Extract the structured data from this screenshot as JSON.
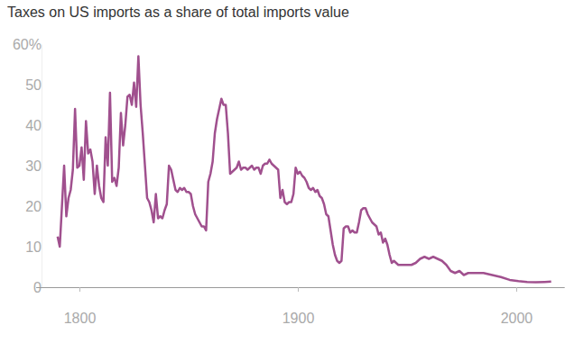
{
  "chart_data": {
    "type": "line",
    "title": "Taxes on US imports as a share of total imports value",
    "x": [
      1790,
      1791,
      1792,
      1793,
      1794,
      1795,
      1796,
      1797,
      1798,
      1799,
      1800,
      1801,
      1802,
      1803,
      1804,
      1805,
      1806,
      1807,
      1808,
      1809,
      1810,
      1811,
      1812,
      1813,
      1814,
      1815,
      1816,
      1817,
      1818,
      1819,
      1820,
      1821,
      1822,
      1823,
      1824,
      1825,
      1826,
      1827,
      1828,
      1829,
      1830,
      1831,
      1832,
      1833,
      1834,
      1835,
      1836,
      1837,
      1838,
      1839,
      1840,
      1841,
      1842,
      1843,
      1844,
      1845,
      1846,
      1847,
      1848,
      1849,
      1850,
      1851,
      1852,
      1853,
      1854,
      1855,
      1856,
      1857,
      1858,
      1859,
      1860,
      1861,
      1862,
      1863,
      1864,
      1865,
      1866,
      1867,
      1868,
      1869,
      1870,
      1871,
      1872,
      1873,
      1874,
      1875,
      1876,
      1877,
      1878,
      1879,
      1880,
      1881,
      1882,
      1883,
      1884,
      1885,
      1886,
      1887,
      1888,
      1889,
      1890,
      1891,
      1892,
      1893,
      1894,
      1895,
      1896,
      1897,
      1898,
      1899,
      1900,
      1901,
      1902,
      1903,
      1904,
      1905,
      1906,
      1907,
      1908,
      1909,
      1910,
      1911,
      1912,
      1913,
      1914,
      1915,
      1916,
      1917,
      1918,
      1919,
      1920,
      1921,
      1922,
      1923,
      1924,
      1925,
      1926,
      1927,
      1928,
      1929,
      1930,
      1931,
      1932,
      1933,
      1934,
      1935,
      1936,
      1937,
      1938,
      1939,
      1940,
      1941,
      1942,
      1943,
      1944,
      1945,
      1946,
      1947,
      1948,
      1949,
      1950,
      1952,
      1954,
      1956,
      1958,
      1960,
      1962,
      1964,
      1966,
      1968,
      1970,
      1972,
      1974,
      1976,
      1978,
      1980,
      1982,
      1985,
      1989,
      1993,
      1997,
      2001,
      2005,
      2009,
      2013,
      2016
    ],
    "values": [
      12.5,
      10,
      20,
      30,
      17.5,
      22,
      24,
      29,
      44,
      29.5,
      30,
      34.5,
      26.5,
      41,
      33,
      34,
      31,
      23,
      30,
      25,
      22,
      21,
      37,
      30,
      48,
      26,
      27,
      25,
      29.5,
      43,
      35,
      40,
      47,
      47.5,
      45,
      50.5,
      44.5,
      57,
      45,
      38,
      30,
      22,
      21,
      19,
      16,
      23,
      17,
      17.5,
      17,
      19,
      20.5,
      30,
      29,
      26.5,
      24,
      23.5,
      24.5,
      24,
      24.5,
      23.5,
      23.5,
      23,
      20,
      18,
      17,
      16,
      15,
      15,
      14,
      26,
      28,
      31,
      38,
      41.5,
      44,
      46.5,
      45,
      45,
      38,
      28,
      28.5,
      29,
      29.5,
      31,
      29,
      29.5,
      29.5,
      29,
      29.5,
      30,
      29,
      29.5,
      29.5,
      28,
      30,
      30.5,
      30.5,
      31.5,
      30.5,
      30,
      29.5,
      29,
      22,
      24,
      21,
      20.5,
      21,
      21,
      23,
      29.5,
      28,
      28.5,
      27.5,
      27,
      26,
      24.5,
      24,
      24.5,
      23.5,
      24,
      22.5,
      22,
      20.5,
      18,
      17.5,
      14,
      10.5,
      8,
      6.5,
      6,
      6.5,
      14.5,
      15,
      15,
      13.5,
      14,
      13.5,
      13.5,
      16,
      19,
      19.5,
      19.5,
      18,
      17,
      16,
      15.5,
      15,
      13,
      13.5,
      11,
      12,
      10.5,
      8,
      6,
      6.5,
      6,
      5.5,
      5.5,
      5.5,
      5.5,
      5.5,
      5.5,
      6,
      7,
      7.5,
      7,
      7.5,
      7,
      6.5,
      5.5,
      4,
      3.5,
      4,
      3,
      3.5,
      3.5,
      3.5,
      3.5,
      3,
      2.5,
      1.8,
      1.5,
      1.3,
      1.2,
      1.3,
      1.4
    ],
    "color": "#a0508e",
    "xlim": [
      1780,
      2022
    ],
    "xticks": [
      1800,
      1900,
      2000
    ],
    "ylim": [
      0,
      60
    ],
    "yticks": [
      {
        "value": 60,
        "label": "60%"
      },
      50,
      40,
      30,
      20,
      10,
      0
    ],
    "grid": false
  }
}
